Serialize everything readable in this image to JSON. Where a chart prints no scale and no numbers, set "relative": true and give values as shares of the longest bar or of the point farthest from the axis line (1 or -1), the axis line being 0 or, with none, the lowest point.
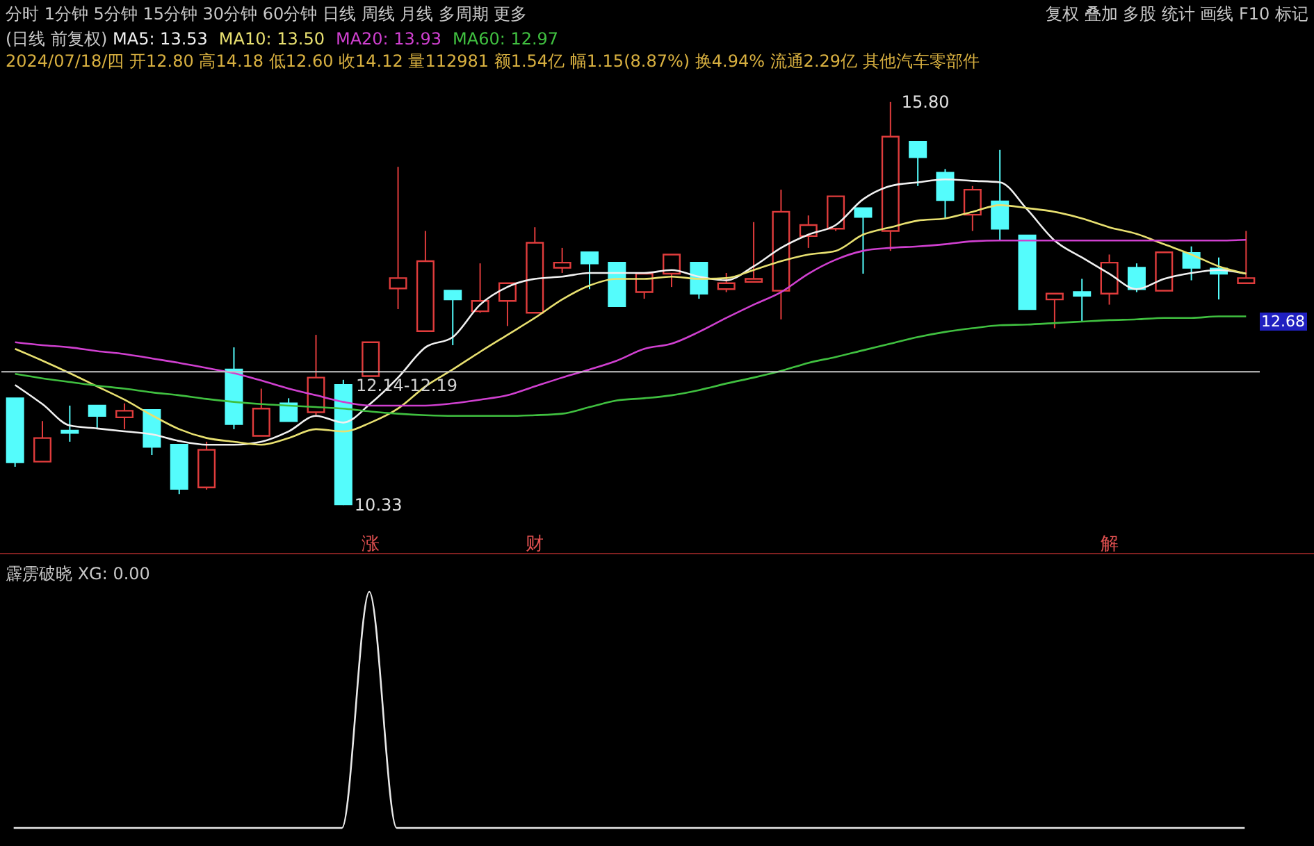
{
  "chart_data": [
    {
      "type": "candlestick",
      "legend": "top left",
      "categories": [
        null,
        null,
        null,
        null,
        null,
        null,
        null,
        null,
        null,
        null,
        null,
        null,
        null,
        "涨",
        null,
        null,
        null,
        null,
        null,
        "财",
        null,
        null,
        null,
        null,
        null,
        null,
        null,
        null,
        null,
        null,
        null,
        null,
        null,
        null,
        null,
        null,
        null,
        null,
        null,
        null,
        "解",
        null,
        null,
        null,
        null,
        null
      ],
      "ohlc": [
        [
          11.78,
          11.78,
          10.85,
          10.91
        ],
        [
          10.92,
          11.47,
          10.92,
          11.24
        ],
        [
          11.34,
          11.68,
          11.19,
          11.31
        ],
        [
          11.68,
          11.68,
          11.36,
          11.54
        ],
        [
          11.52,
          11.71,
          11.36,
          11.61
        ],
        [
          11.62,
          11.62,
          11.01,
          11.12
        ],
        [
          11.15,
          11.15,
          10.48,
          10.55
        ],
        [
          10.57,
          11.19,
          10.54,
          11.08
        ],
        [
          12.17,
          12.47,
          11.36,
          11.43
        ],
        [
          11.27,
          11.91,
          11.27,
          11.64
        ],
        [
          11.71,
          11.78,
          11.47,
          11.47
        ],
        [
          11.59,
          12.64,
          11.55,
          12.06
        ],
        [
          11.96,
          12.03,
          10.33,
          10.34
        ],
        [
          12.08,
          12.54,
          12.08,
          12.54
        ],
        [
          13.27,
          14.92,
          12.99,
          13.41
        ],
        [
          12.69,
          14.05,
          12.68,
          13.64
        ],
        [
          13.24,
          13.24,
          12.5,
          13.12
        ],
        [
          12.96,
          13.61,
          12.94,
          13.1
        ],
        [
          13.1,
          13.34,
          12.76,
          13.34
        ],
        [
          12.94,
          14.1,
          12.94,
          13.89
        ],
        [
          13.55,
          13.82,
          13.48,
          13.62
        ],
        [
          13.76,
          13.76,
          13.26,
          13.61
        ],
        [
          13.62,
          13.62,
          13.03,
          13.03
        ],
        [
          13.22,
          13.47,
          13.13,
          13.47
        ],
        [
          13.47,
          13.73,
          13.29,
          13.73
        ],
        [
          13.62,
          13.62,
          13.13,
          13.2
        ],
        [
          13.26,
          13.48,
          13.22,
          13.34
        ],
        [
          13.36,
          14.17,
          13.36,
          13.4
        ],
        [
          13.24,
          14.61,
          12.85,
          14.31
        ],
        [
          13.98,
          14.26,
          13.82,
          14.13
        ],
        [
          14.08,
          14.52,
          14.05,
          14.52
        ],
        [
          14.36,
          14.36,
          13.47,
          14.24
        ],
        [
          14.05,
          15.8,
          13.78,
          15.33
        ],
        [
          15.26,
          15.26,
          14.66,
          15.05
        ],
        [
          14.84,
          14.89,
          14.22,
          14.47
        ],
        [
          14.27,
          14.66,
          14.05,
          14.61
        ],
        [
          14.45,
          15.15,
          13.92,
          14.08
        ],
        [
          13.99,
          13.99,
          12.99,
          12.99
        ],
        [
          13.12,
          13.2,
          12.73,
          13.2
        ],
        [
          13.22,
          13.4,
          12.82,
          13.17
        ],
        [
          13.2,
          13.73,
          13.05,
          13.62
        ],
        [
          13.55,
          13.61,
          13.22,
          13.26
        ],
        [
          13.24,
          13.76,
          13.24,
          13.76
        ],
        [
          13.75,
          13.84,
          13.38,
          13.55
        ],
        [
          13.54,
          13.69,
          13.12,
          13.47
        ],
        [
          13.34,
          14.05,
          13.34,
          13.41
        ]
      ],
      "colors": [
        "#54fcfc",
        "#e03c3c",
        "#54fcfc",
        "#54fcfc",
        "#e03c3c",
        "#54fcfc",
        "#54fcfc",
        "#e03c3c",
        "#54fcfc",
        "#e03c3c",
        "#54fcfc",
        "#e03c3c",
        "#54fcfc",
        "#e03c3c",
        "#e03c3c",
        "#e03c3c",
        "#54fcfc",
        "#e03c3c",
        "#e03c3c",
        "#e03c3c",
        "#e03c3c",
        "#54fcfc",
        "#54fcfc",
        "#e03c3c",
        "#e03c3c",
        "#54fcfc",
        "#e03c3c",
        "#e03c3c",
        "#e03c3c",
        "#e03c3c",
        "#e03c3c",
        "#54fcfc",
        "#e03c3c",
        "#54fcfc",
        "#54fcfc",
        "#e03c3c",
        "#54fcfc",
        "#54fcfc",
        "#e03c3c",
        "#54fcfc",
        "#e03c3c",
        "#54fcfc",
        "#e03c3c",
        "#54fcfc",
        "#54fcfc",
        "#e03c3c"
      ],
      "series": [
        {
          "type": "line",
          "name": "MA5: 13.53",
          "color": "#f0f0f0",
          "values": [
            11.96,
            11.7,
            11.41,
            11.37,
            11.33,
            11.29,
            11.2,
            11.15,
            11.15,
            11.19,
            11.33,
            11.54,
            11.45,
            11.71,
            12.06,
            12.47,
            12.61,
            13.05,
            13.29,
            13.4,
            13.43,
            13.48,
            13.48,
            13.48,
            13.52,
            13.43,
            13.38,
            13.57,
            13.82,
            14.0,
            14.13,
            14.48,
            14.66,
            14.71,
            14.75,
            14.73,
            14.71,
            14.34,
            13.92,
            13.69,
            13.47,
            13.26,
            13.4,
            13.48,
            13.52,
            13.47
          ]
        },
        {
          "type": "line",
          "name": "MA10: 13.50",
          "color": "#e8e070",
          "values": [
            12.45,
            12.29,
            12.12,
            11.94,
            11.76,
            11.55,
            11.36,
            11.24,
            11.19,
            11.15,
            11.24,
            11.36,
            11.33,
            11.45,
            11.64,
            11.94,
            12.17,
            12.41,
            12.64,
            12.87,
            13.12,
            13.31,
            13.4,
            13.4,
            13.43,
            13.4,
            13.41,
            13.52,
            13.64,
            13.73,
            13.78,
            14.0,
            14.1,
            14.19,
            14.22,
            14.31,
            14.4,
            14.36,
            14.31,
            14.22,
            14.1,
            14.01,
            13.87,
            13.73,
            13.57,
            13.47
          ]
        },
        {
          "type": "line",
          "name": "MA20: 13.93",
          "color": "#d040d0",
          "values": [
            12.54,
            12.5,
            12.47,
            12.42,
            12.38,
            12.32,
            12.26,
            12.19,
            12.12,
            12.02,
            11.91,
            11.82,
            11.73,
            11.68,
            11.68,
            11.68,
            11.71,
            11.76,
            11.82,
            11.94,
            12.06,
            12.17,
            12.29,
            12.45,
            12.52,
            12.68,
            12.87,
            13.05,
            13.22,
            13.47,
            13.66,
            13.78,
            13.82,
            13.84,
            13.87,
            13.91,
            13.92,
            13.92,
            13.92,
            13.92,
            13.92,
            13.92,
            13.92,
            13.92,
            13.92,
            13.93
          ]
        },
        {
          "type": "line",
          "name": "MA60: 12.97",
          "color": "#40c040",
          "values": [
            12.11,
            12.05,
            12.0,
            11.95,
            11.91,
            11.86,
            11.82,
            11.77,
            11.73,
            11.7,
            11.68,
            11.66,
            11.64,
            11.6,
            11.57,
            11.55,
            11.54,
            11.54,
            11.54,
            11.55,
            11.57,
            11.66,
            11.75,
            11.78,
            11.82,
            11.89,
            11.98,
            12.06,
            12.15,
            12.26,
            12.34,
            12.43,
            12.52,
            12.61,
            12.68,
            12.73,
            12.77,
            12.78,
            12.8,
            12.82,
            12.84,
            12.85,
            12.87,
            12.87,
            12.89,
            12.89
          ]
        }
      ],
      "ref_lines": [
        {
          "axis": "y",
          "value": 12.14,
          "label": "12.14-12.19"
        }
      ],
      "annotations": [
        "分时 1分钟 5分钟 15分钟 30分钟 60分钟 日线 周线 月线 多周期 更多",
        "复权 叠加 多股 统计 画线 F10 标记",
        "(日线 前复权)",
        "2024/07/18/四 开12.80 高14.18 低12.60 收14.12 量112981 额1.54亿 幅1.15(8.87%) 换4.94% 流通2.29亿 其他汽车零部件",
        "15.80",
        "10.33",
        "12.68"
      ]
    },
    {
      "type": "line",
      "relative": true,
      "title": "霹雳破晓 XG: 0.00",
      "categories": [
        null,
        null,
        null,
        null,
        null,
        null,
        null,
        null,
        null,
        null,
        null,
        null,
        null,
        null,
        null,
        null,
        null,
        null,
        null,
        null,
        null,
        null,
        null,
        null,
        null,
        null,
        null,
        null,
        null,
        null,
        null,
        null,
        null,
        null,
        null,
        null,
        null,
        null,
        null,
        null,
        null,
        null,
        null,
        null,
        null,
        null
      ],
      "series": [
        {
          "color": "#e8e8e8",
          "values": [
            0,
            0,
            0,
            0,
            0,
            0,
            0,
            0,
            0,
            0,
            0,
            0,
            0,
            1,
            0,
            0,
            0,
            0,
            0,
            0,
            0,
            0,
            0,
            0,
            0,
            0,
            0,
            0,
            0,
            0,
            0,
            0,
            0,
            0,
            0,
            0,
            0,
            0,
            0,
            0,
            0,
            0,
            0,
            0,
            0,
            0
          ]
        }
      ]
    }
  ]
}
